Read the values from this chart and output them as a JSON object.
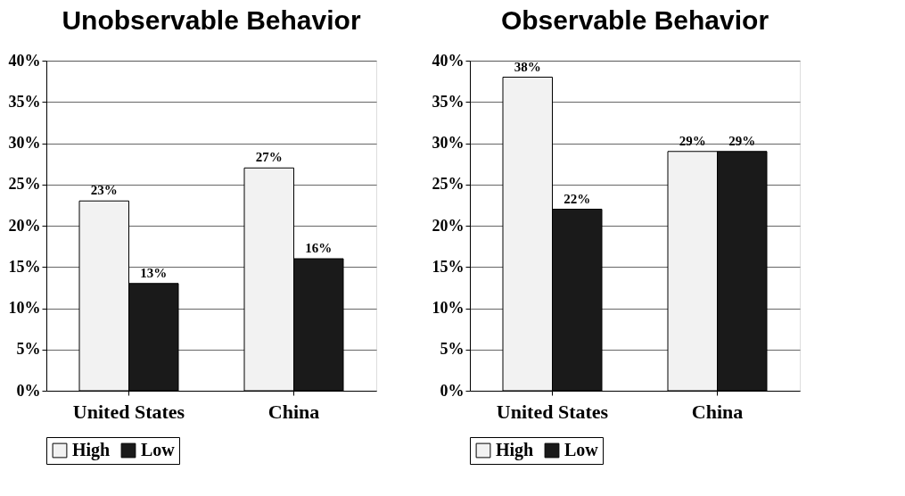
{
  "chart_data": [
    {
      "type": "bar",
      "title": "Unobservable Behavior",
      "categories": [
        "United States",
        "China"
      ],
      "series": [
        {
          "name": "High",
          "color": "#f2f2f2",
          "values": [
            23,
            27
          ],
          "value_labels": [
            "23%",
            "27%"
          ]
        },
        {
          "name": "Low",
          "color": "#1a1a1a",
          "values": [
            13,
            16
          ],
          "value_labels": [
            "13%",
            "16%"
          ]
        }
      ],
      "ylim": [
        0,
        40
      ],
      "yticks": [
        {
          "value": 0,
          "label": "0%"
        },
        {
          "value": 5,
          "label": "5%"
        },
        {
          "value": 10,
          "label": "10%"
        },
        {
          "value": 15,
          "label": "15%"
        },
        {
          "value": 20,
          "label": "20%"
        },
        {
          "value": 25,
          "label": "25%"
        },
        {
          "value": 30,
          "label": "30%"
        },
        {
          "value": 35,
          "label": "35%"
        },
        {
          "value": 40,
          "label": "40%"
        }
      ],
      "grid": "y",
      "legend": "bottom"
    },
    {
      "type": "bar",
      "title": "Observable Behavior",
      "categories": [
        "United States",
        "China"
      ],
      "series": [
        {
          "name": "High",
          "color": "#f2f2f2",
          "values": [
            38,
            29
          ],
          "value_labels": [
            "38%",
            "29%"
          ]
        },
        {
          "name": "Low",
          "color": "#1a1a1a",
          "values": [
            22,
            29
          ],
          "value_labels": [
            "22%",
            "29%"
          ]
        }
      ],
      "ylim": [
        0,
        40
      ],
      "yticks": [
        {
          "value": 0,
          "label": "0%"
        },
        {
          "value": 5,
          "label": "5%"
        },
        {
          "value": 10,
          "label": "10%"
        },
        {
          "value": 15,
          "label": "15%"
        },
        {
          "value": 20,
          "label": "20%"
        },
        {
          "value": 25,
          "label": "25%"
        },
        {
          "value": 30,
          "label": "30%"
        },
        {
          "value": 35,
          "label": "35%"
        },
        {
          "value": 40,
          "label": "40%"
        }
      ],
      "grid": "y",
      "legend": "bottom"
    }
  ]
}
